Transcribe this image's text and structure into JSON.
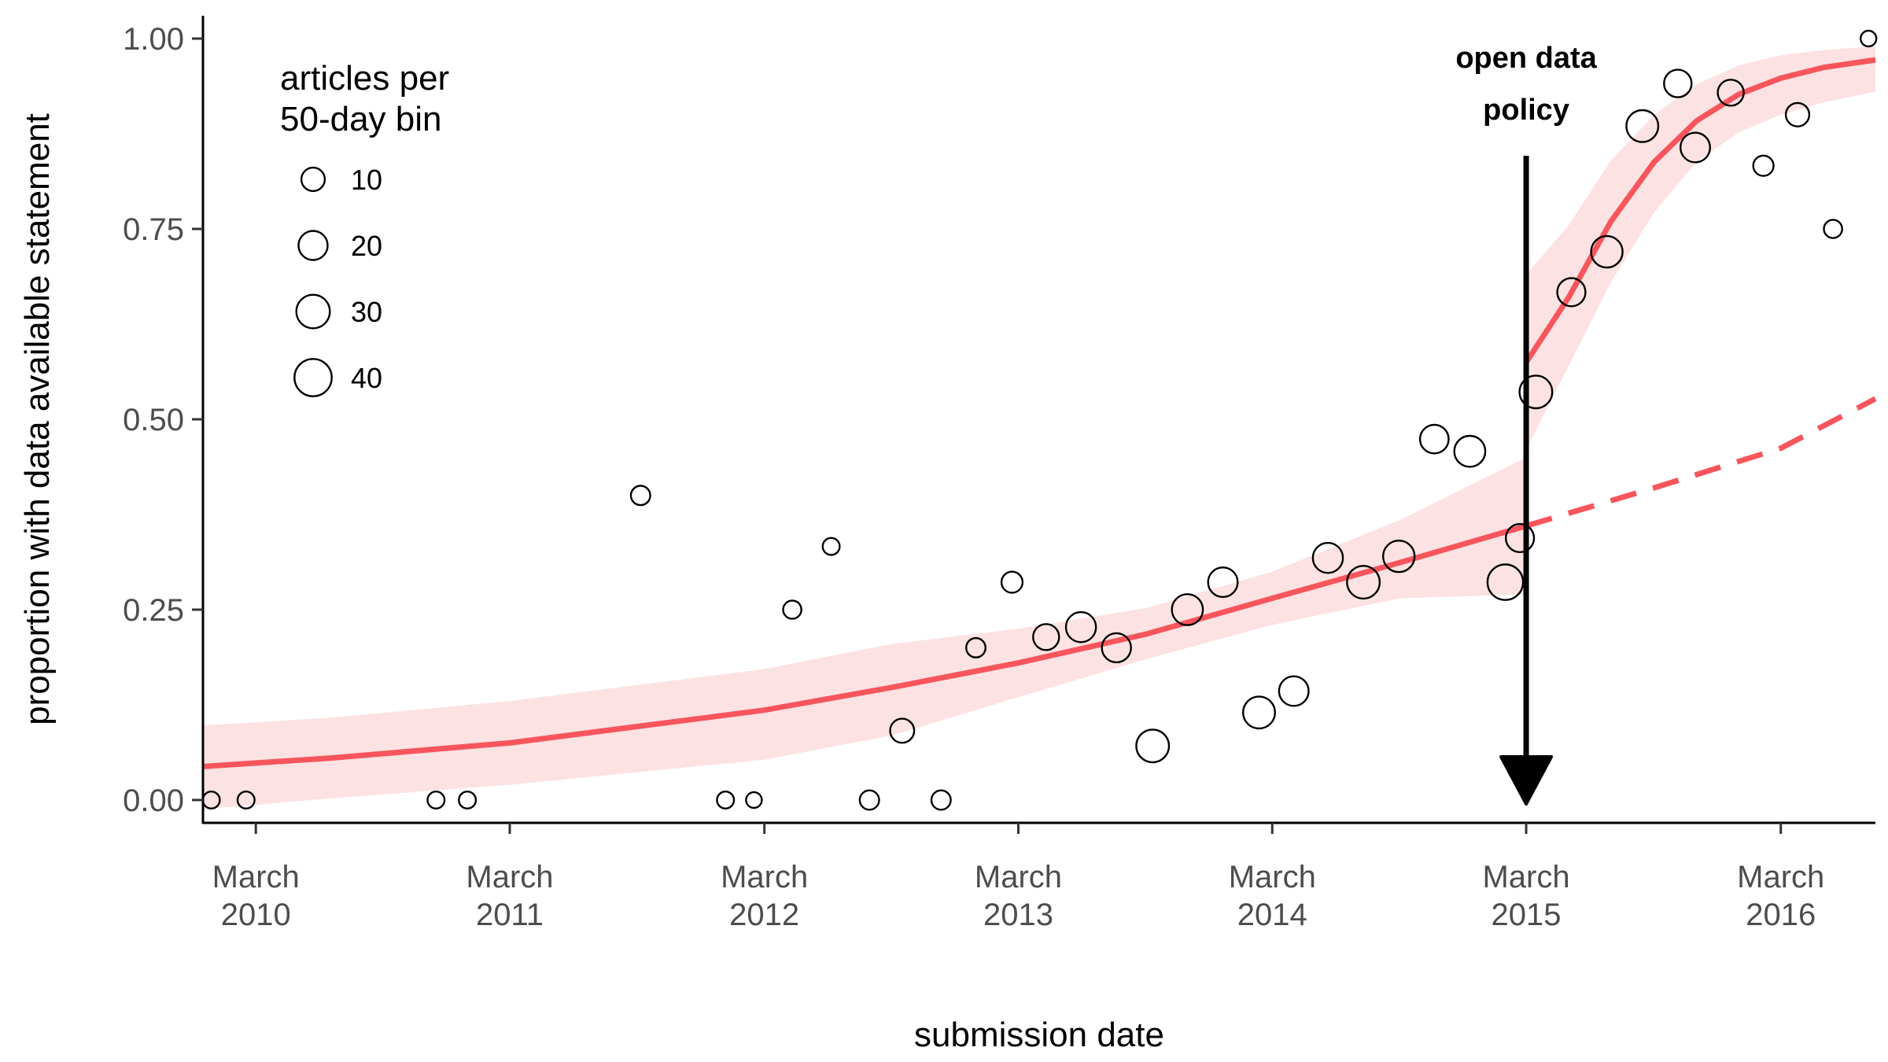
{
  "chart_data": {
    "type": "scatter",
    "xlabel": "submission date",
    "ylabel": "proportion with data available statement",
    "x_axis": {
      "kind": "date",
      "range": [
        "2009-12-15",
        "2016-07-15"
      ],
      "ticks": [
        {
          "date": "2010-03-01",
          "label": [
            "March",
            "2010"
          ]
        },
        {
          "date": "2011-03-01",
          "label": [
            "March",
            "2011"
          ]
        },
        {
          "date": "2012-03-01",
          "label": [
            "March",
            "2012"
          ]
        },
        {
          "date": "2013-03-01",
          "label": [
            "March",
            "2013"
          ]
        },
        {
          "date": "2014-03-01",
          "label": [
            "March",
            "2014"
          ]
        },
        {
          "date": "2015-03-01",
          "label": [
            "March",
            "2015"
          ]
        },
        {
          "date": "2016-03-01",
          "label": [
            "March",
            "2016"
          ]
        }
      ]
    },
    "y_axis": {
      "range": [
        -0.03,
        1.03
      ],
      "ticks": [
        0,
        0.25,
        0.5,
        0.75,
        1.0
      ],
      "tick_labels": [
        "0.00",
        "0.25",
        "0.50",
        "0.75",
        "1.00"
      ]
    },
    "grid": false,
    "legend": {
      "title_lines": [
        "articles per",
        "50-day bin"
      ],
      "position": "top-left",
      "entries": [
        {
          "label": "10",
          "size": 10
        },
        {
          "label": "20",
          "size": 20
        },
        {
          "label": "30",
          "size": 30
        },
        {
          "label": "40",
          "size": 40
        }
      ]
    },
    "annotation": {
      "lines": [
        "open data",
        "policy"
      ],
      "date": "2015-03-01"
    },
    "colors": {
      "fit_line": "#f8555d",
      "ribbon": "#fde2e3",
      "points": "#000000",
      "arrow": "#000000"
    },
    "points": [
      {
        "date": "2009-12-27",
        "y": 0.0,
        "n": 3
      },
      {
        "date": "2010-02-15",
        "y": 0.0,
        "n": 3
      },
      {
        "date": "2010-11-15",
        "y": 0.0,
        "n": 3
      },
      {
        "date": "2010-12-30",
        "y": 0.0,
        "n": 3
      },
      {
        "date": "2011-09-05",
        "y": 0.4,
        "n": 5
      },
      {
        "date": "2012-01-05",
        "y": 0.0,
        "n": 3
      },
      {
        "date": "2012-02-15",
        "y": 0.0,
        "n": 2
      },
      {
        "date": "2012-04-10",
        "y": 0.25,
        "n": 4
      },
      {
        "date": "2012-06-05",
        "y": 0.333,
        "n": 3
      },
      {
        "date": "2012-07-30",
        "y": 0.0,
        "n": 5
      },
      {
        "date": "2012-09-15",
        "y": 0.091,
        "n": 11
      },
      {
        "date": "2012-11-10",
        "y": 0.0,
        "n": 5
      },
      {
        "date": "2012-12-30",
        "y": 0.2,
        "n": 5
      },
      {
        "date": "2013-02-20",
        "y": 0.286,
        "n": 7
      },
      {
        "date": "2013-04-10",
        "y": 0.214,
        "n": 14
      },
      {
        "date": "2013-05-30",
        "y": 0.227,
        "n": 22
      },
      {
        "date": "2013-07-20",
        "y": 0.2,
        "n": 20
      },
      {
        "date": "2013-09-10",
        "y": 0.071,
        "n": 28
      },
      {
        "date": "2013-10-30",
        "y": 0.25,
        "n": 24
      },
      {
        "date": "2013-12-20",
        "y": 0.286,
        "n": 21
      },
      {
        "date": "2014-02-10",
        "y": 0.115,
        "n": 26
      },
      {
        "date": "2014-04-01",
        "y": 0.143,
        "n": 21
      },
      {
        "date": "2014-05-20",
        "y": 0.318,
        "n": 22
      },
      {
        "date": "2014-07-10",
        "y": 0.286,
        "n": 28
      },
      {
        "date": "2014-08-30",
        "y": 0.32,
        "n": 25
      },
      {
        "date": "2014-10-20",
        "y": 0.474,
        "n": 19
      },
      {
        "date": "2014-12-10",
        "y": 0.458,
        "n": 24
      },
      {
        "date": "2015-01-30",
        "y": 0.286,
        "n": 35
      },
      {
        "date": "2015-02-20",
        "y": 0.344,
        "n": 18
      },
      {
        "date": "2015-03-15",
        "y": 0.536,
        "n": 28
      },
      {
        "date": "2015-05-05",
        "y": 0.667,
        "n": 18
      },
      {
        "date": "2015-06-25",
        "y": 0.72,
        "n": 25
      },
      {
        "date": "2015-08-15",
        "y": 0.885,
        "n": 26
      },
      {
        "date": "2015-10-05",
        "y": 0.941,
        "n": 17
      },
      {
        "date": "2015-10-30",
        "y": 0.857,
        "n": 21
      },
      {
        "date": "2015-12-20",
        "y": 0.929,
        "n": 14
      },
      {
        "date": "2016-02-05",
        "y": 0.833,
        "n": 6
      },
      {
        "date": "2016-03-25",
        "y": 0.9,
        "n": 10
      },
      {
        "date": "2016-05-15",
        "y": 0.75,
        "n": 4
      },
      {
        "date": "2016-07-05",
        "y": 1.0,
        "n": 2
      }
    ],
    "fit_pre_policy": [
      {
        "date": "2009-12-15",
        "y": 0.044,
        "lo": -0.012,
        "hi": 0.098
      },
      {
        "date": "2010-06-15",
        "y": 0.055,
        "lo": 0.002,
        "hi": 0.108
      },
      {
        "date": "2011-03-01",
        "y": 0.075,
        "lo": 0.02,
        "hi": 0.13
      },
      {
        "date": "2012-03-01",
        "y": 0.118,
        "lo": 0.053,
        "hi": 0.172
      },
      {
        "date": "2012-09-01",
        "y": 0.148,
        "lo": 0.085,
        "hi": 0.205
      },
      {
        "date": "2013-03-01",
        "y": 0.18,
        "lo": 0.135,
        "hi": 0.225
      },
      {
        "date": "2013-09-01",
        "y": 0.218,
        "lo": 0.185,
        "hi": 0.252
      },
      {
        "date": "2014-03-01",
        "y": 0.265,
        "lo": 0.23,
        "hi": 0.3
      },
      {
        "date": "2014-09-01",
        "y": 0.312,
        "lo": 0.265,
        "hi": 0.368
      },
      {
        "date": "2015-03-01",
        "y": 0.36,
        "lo": 0.27,
        "hi": 0.45
      }
    ],
    "fit_counterfactual": [
      {
        "date": "2015-03-01",
        "y": 0.36
      },
      {
        "date": "2015-09-01",
        "y": 0.41
      },
      {
        "date": "2016-03-01",
        "y": 0.462
      },
      {
        "date": "2016-07-15",
        "y": 0.527
      }
    ],
    "fit_post_policy": [
      {
        "date": "2015-03-01",
        "y": 0.575,
        "lo": 0.46,
        "hi": 0.69
      },
      {
        "date": "2015-05-01",
        "y": 0.66,
        "lo": 0.57,
        "hi": 0.755
      },
      {
        "date": "2015-07-01",
        "y": 0.76,
        "lo": 0.68,
        "hi": 0.84
      },
      {
        "date": "2015-09-01",
        "y": 0.838,
        "lo": 0.772,
        "hi": 0.9
      },
      {
        "date": "2015-11-01",
        "y": 0.892,
        "lo": 0.838,
        "hi": 0.94
      },
      {
        "date": "2016-01-01",
        "y": 0.927,
        "lo": 0.877,
        "hi": 0.965
      },
      {
        "date": "2016-03-01",
        "y": 0.948,
        "lo": 0.9,
        "hi": 0.978
      },
      {
        "date": "2016-05-01",
        "y": 0.962,
        "lo": 0.916,
        "hi": 0.985
      },
      {
        "date": "2016-07-15",
        "y": 0.972,
        "lo": 0.93,
        "hi": 0.99
      }
    ]
  }
}
